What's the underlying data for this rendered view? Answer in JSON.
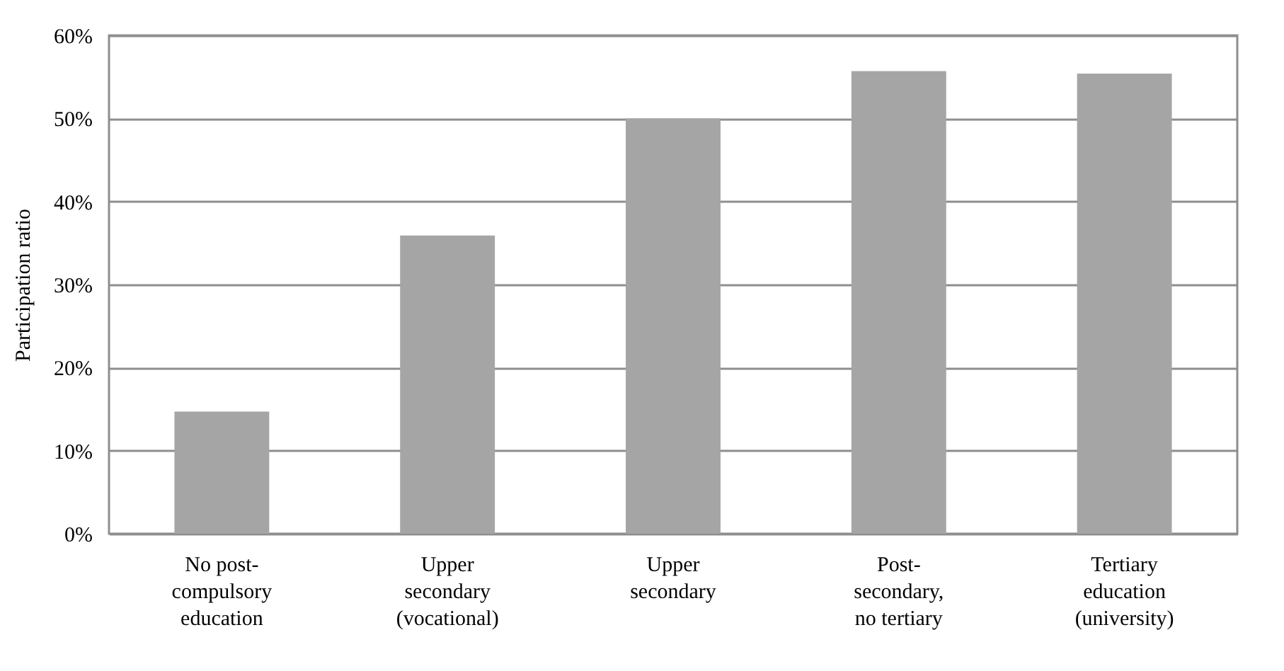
{
  "chart_data": {
    "type": "bar",
    "ylabel": "Participation ratio",
    "categories": [
      "No post-compulsory education",
      "Upper secondary (vocational)",
      "Upper secondary",
      "Post-secondary, no tertiary",
      "Tertiary education (university)"
    ],
    "values": [
      14.7,
      35.9,
      50.0,
      55.7,
      55.4
    ],
    "color": "#a5a5a5",
    "ylim": [
      0,
      60
    ],
    "yticks": [
      {
        "value": 0,
        "label": "0%"
      },
      {
        "value": 10,
        "label": "10%"
      },
      {
        "value": 20,
        "label": "20%"
      },
      {
        "value": 30,
        "label": "30%"
      },
      {
        "value": 40,
        "label": "40%"
      },
      {
        "value": 50,
        "label": "50%"
      },
      {
        "value": 60,
        "label": "60%"
      }
    ],
    "grid": true
  }
}
